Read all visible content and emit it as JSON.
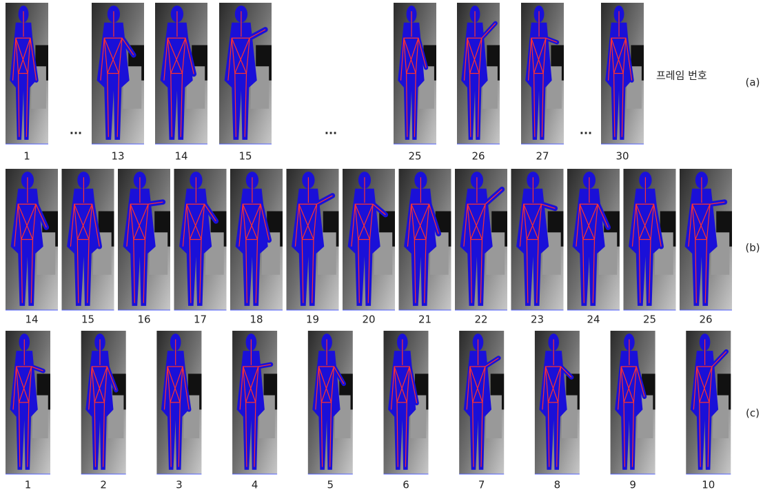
{
  "figure": {
    "rows": [
      {
        "label": "(a)",
        "note": "프레임 번호",
        "items": [
          {
            "frame": 1
          },
          {
            "ellipsis": "..."
          },
          {
            "frame": 13
          },
          {
            "frame": 14
          },
          {
            "frame": 15
          },
          {
            "ellipsis": "..."
          },
          {
            "frame": 25
          },
          {
            "frame": 26
          },
          {
            "frame": 27
          },
          {
            "ellipsis": "..."
          },
          {
            "frame": 30
          }
        ]
      },
      {
        "label": "(b)",
        "items": [
          {
            "frame": 14
          },
          {
            "frame": 15
          },
          {
            "frame": 16
          },
          {
            "frame": 17
          },
          {
            "frame": 18
          },
          {
            "frame": 19
          },
          {
            "frame": 20
          },
          {
            "frame": 21
          },
          {
            "frame": 22
          },
          {
            "frame": 23
          },
          {
            "frame": 24
          },
          {
            "frame": 25
          },
          {
            "frame": 26
          }
        ]
      },
      {
        "label": "(c)",
        "items": [
          {
            "frame": 1
          },
          {
            "frame": 2
          },
          {
            "frame": 3
          },
          {
            "frame": 4
          },
          {
            "frame": 5
          },
          {
            "frame": 6
          },
          {
            "frame": 7
          },
          {
            "frame": 8
          },
          {
            "frame": 9
          },
          {
            "frame": 10
          }
        ]
      }
    ]
  }
}
